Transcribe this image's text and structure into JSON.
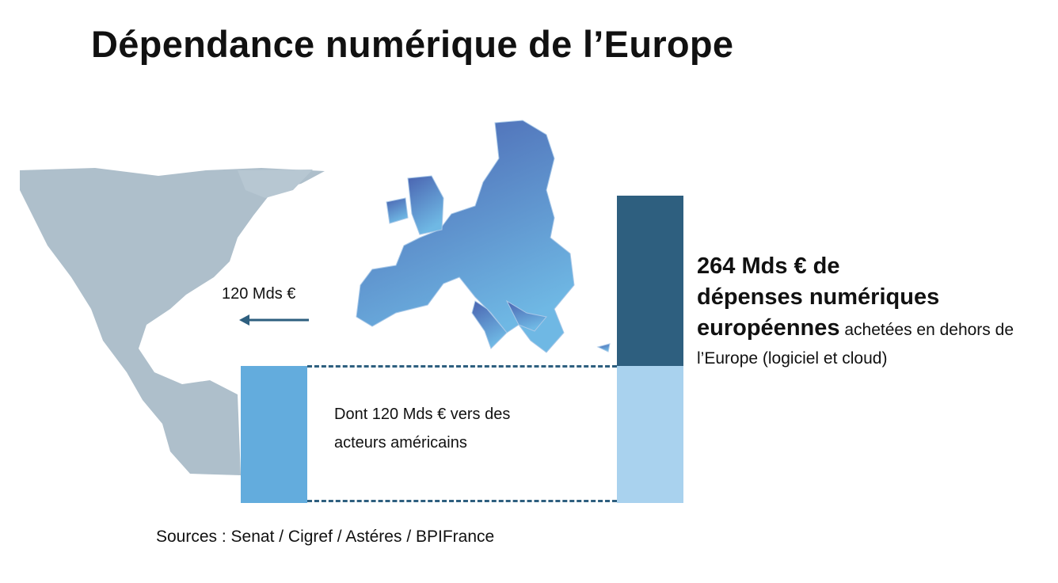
{
  "title": "Dépendance numérique de l’Europe",
  "flow": {
    "label": "120 Mds €",
    "arrow_icon": "arrow-left-icon"
  },
  "note": "Dont 120 Mds € vers des acteurs américains",
  "summary": {
    "bold_line1": "264 Mds € de",
    "bold_line2": "dépenses numériques",
    "bold_line3": "européennes",
    "rest": " achetées en dehors de l’Europe (logiciel et cloud)"
  },
  "sources": "Sources : Senat / Cigref / Astéres / BPIFrance",
  "values": {
    "total_mds_eur": 264,
    "us_share_mds_eur": 120
  },
  "colors": {
    "americas_map": "#aebfcb",
    "europe_dark": "#4a63b0",
    "europe_light": "#6fb8e4",
    "bar_us": "#63acdd",
    "bar_total_top": "#2e5f7f",
    "bar_total_bottom": "#a9d2ee",
    "dashed_line": "#2e5f7f"
  }
}
